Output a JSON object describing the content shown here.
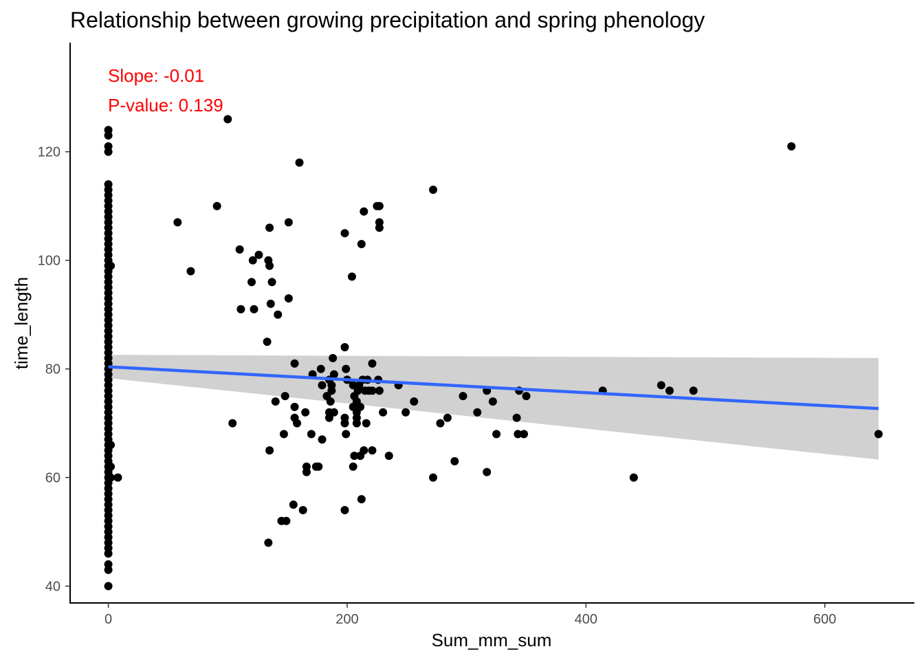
{
  "chart_data": {
    "type": "scatter",
    "title": "Relationship between growing precipitation and spring phenology",
    "xlabel": "Sum_mm_sum",
    "ylabel": "time_length",
    "xlim": [
      -32,
      675
    ],
    "ylim": [
      36.9,
      140.1
    ],
    "x_ticks": [
      0,
      200,
      400,
      600
    ],
    "y_ticks": [
      40,
      60,
      80,
      100,
      120
    ],
    "grid": false,
    "legend": "none",
    "colors": {
      "points": "#000000",
      "fit_line": "#3366FF",
      "ribbon": "#D1D1D1",
      "annotation": "#FF0000"
    },
    "annotations": [
      "Slope: -0.01",
      "P-value: 0.139"
    ],
    "fit": {
      "x": [
        0,
        645
      ],
      "y": [
        80.4,
        72.7
      ],
      "ci_lower": [
        78.3,
        63.3
      ],
      "ci_upper": [
        82.6,
        82.0
      ]
    },
    "points": [
      [
        0,
        124
      ],
      [
        0,
        123
      ],
      [
        0,
        121
      ],
      [
        0,
        120
      ],
      [
        0,
        114
      ],
      [
        0,
        113
      ],
      [
        0,
        112
      ],
      [
        0,
        111
      ],
      [
        0,
        110
      ],
      [
        0,
        109
      ],
      [
        0,
        108
      ],
      [
        0,
        107
      ],
      [
        0,
        106
      ],
      [
        0,
        105
      ],
      [
        0,
        104
      ],
      [
        0,
        103
      ],
      [
        0,
        102
      ],
      [
        0,
        101
      ],
      [
        0,
        100
      ],
      [
        0,
        99
      ],
      [
        0,
        98
      ],
      [
        0,
        97
      ],
      [
        0,
        96
      ],
      [
        0,
        95
      ],
      [
        0,
        94
      ],
      [
        0,
        93
      ],
      [
        0,
        92
      ],
      [
        0,
        91
      ],
      [
        0,
        90
      ],
      [
        0,
        89
      ],
      [
        0,
        88
      ],
      [
        0,
        87
      ],
      [
        0,
        86
      ],
      [
        0,
        85
      ],
      [
        0,
        84
      ],
      [
        0,
        83
      ],
      [
        0,
        82
      ],
      [
        0,
        81
      ],
      [
        0,
        80
      ],
      [
        0,
        79
      ],
      [
        0,
        78
      ],
      [
        0,
        77
      ],
      [
        0,
        76
      ],
      [
        0,
        75
      ],
      [
        0,
        74
      ],
      [
        0,
        73
      ],
      [
        0,
        72
      ],
      [
        0,
        71
      ],
      [
        0,
        70
      ],
      [
        0,
        69
      ],
      [
        0,
        68
      ],
      [
        0,
        67
      ],
      [
        0,
        66
      ],
      [
        0,
        65
      ],
      [
        0,
        64
      ],
      [
        0,
        63
      ],
      [
        0,
        62
      ],
      [
        0,
        61
      ],
      [
        0,
        60
      ],
      [
        0,
        59
      ],
      [
        0,
        58
      ],
      [
        0,
        57
      ],
      [
        0,
        56
      ],
      [
        0,
        55
      ],
      [
        0,
        54
      ],
      [
        0,
        53
      ],
      [
        0,
        52
      ],
      [
        0,
        51
      ],
      [
        0,
        50
      ],
      [
        0,
        49
      ],
      [
        0,
        48
      ],
      [
        0,
        47
      ],
      [
        0,
        46
      ],
      [
        0,
        44
      ],
      [
        0,
        43
      ],
      [
        0,
        40
      ],
      [
        2,
        99
      ],
      [
        2,
        66
      ],
      [
        2,
        62
      ],
      [
        2,
        60
      ],
      [
        8,
        60
      ],
      [
        100,
        126
      ],
      [
        58,
        107
      ],
      [
        69,
        98
      ],
      [
        91,
        110
      ],
      [
        104,
        70
      ],
      [
        110,
        102
      ],
      [
        111,
        91
      ],
      [
        120,
        96
      ],
      [
        121,
        100
      ],
      [
        122,
        91
      ],
      [
        126,
        101
      ],
      [
        133,
        85
      ],
      [
        134,
        100
      ],
      [
        134,
        48
      ],
      [
        135,
        106
      ],
      [
        135,
        99
      ],
      [
        135,
        65
      ],
      [
        136,
        92
      ],
      [
        137,
        96
      ],
      [
        140,
        74
      ],
      [
        142,
        90
      ],
      [
        145,
        52
      ],
      [
        147,
        68
      ],
      [
        148,
        75
      ],
      [
        149,
        52
      ],
      [
        151,
        107
      ],
      [
        151,
        93
      ],
      [
        155,
        55
      ],
      [
        156,
        81
      ],
      [
        156,
        73
      ],
      [
        156,
        71
      ],
      [
        158,
        70
      ],
      [
        160,
        118
      ],
      [
        163,
        54
      ],
      [
        165,
        72
      ],
      [
        166,
        62
      ],
      [
        166,
        61
      ],
      [
        170,
        68
      ],
      [
        171,
        79
      ],
      [
        174,
        62
      ],
      [
        176,
        62
      ],
      [
        178,
        80
      ],
      [
        179,
        67
      ],
      [
        179,
        77
      ],
      [
        183,
        75
      ],
      [
        185,
        78
      ],
      [
        185,
        72
      ],
      [
        185,
        71
      ],
      [
        186,
        74
      ],
      [
        187,
        77
      ],
      [
        187,
        76
      ],
      [
        188,
        82
      ],
      [
        189,
        72
      ],
      [
        189,
        79
      ],
      [
        198,
        105
      ],
      [
        198,
        84
      ],
      [
        198,
        71
      ],
      [
        198,
        70
      ],
      [
        198,
        54
      ],
      [
        199,
        68
      ],
      [
        199,
        80
      ],
      [
        200,
        78
      ],
      [
        204,
        97
      ],
      [
        205,
        77
      ],
      [
        205,
        73
      ],
      [
        205,
        62
      ],
      [
        206,
        64
      ],
      [
        206,
        75
      ],
      [
        208,
        72
      ],
      [
        208,
        71
      ],
      [
        208,
        70
      ],
      [
        208,
        74
      ],
      [
        209,
        76
      ],
      [
        210,
        77
      ],
      [
        211,
        73
      ],
      [
        211,
        64
      ],
      [
        212,
        103
      ],
      [
        212,
        56
      ],
      [
        213,
        78
      ],
      [
        214,
        65
      ],
      [
        214,
        109
      ],
      [
        215,
        76
      ],
      [
        216,
        70
      ],
      [
        217,
        78
      ],
      [
        218,
        76
      ],
      [
        221,
        81
      ],
      [
        221,
        65
      ],
      [
        221,
        76
      ],
      [
        225,
        110
      ],
      [
        226,
        78
      ],
      [
        227,
        110
      ],
      [
        227,
        107
      ],
      [
        227,
        106
      ],
      [
        227,
        76
      ],
      [
        230,
        72
      ],
      [
        235,
        64
      ],
      [
        243,
        77
      ],
      [
        249,
        72
      ],
      [
        256,
        74
      ],
      [
        272,
        113
      ],
      [
        272,
        60
      ],
      [
        278,
        70
      ],
      [
        284,
        71
      ],
      [
        290,
        63
      ],
      [
        297,
        75
      ],
      [
        309,
        72
      ],
      [
        317,
        61
      ],
      [
        317,
        76
      ],
      [
        322,
        74
      ],
      [
        325,
        68
      ],
      [
        342,
        71
      ],
      [
        343,
        68
      ],
      [
        344,
        76
      ],
      [
        348,
        68
      ],
      [
        350,
        75
      ],
      [
        414,
        76
      ],
      [
        440,
        60
      ],
      [
        463,
        77
      ],
      [
        470,
        76
      ],
      [
        490,
        76
      ],
      [
        572,
        121
      ],
      [
        645,
        68
      ]
    ]
  }
}
